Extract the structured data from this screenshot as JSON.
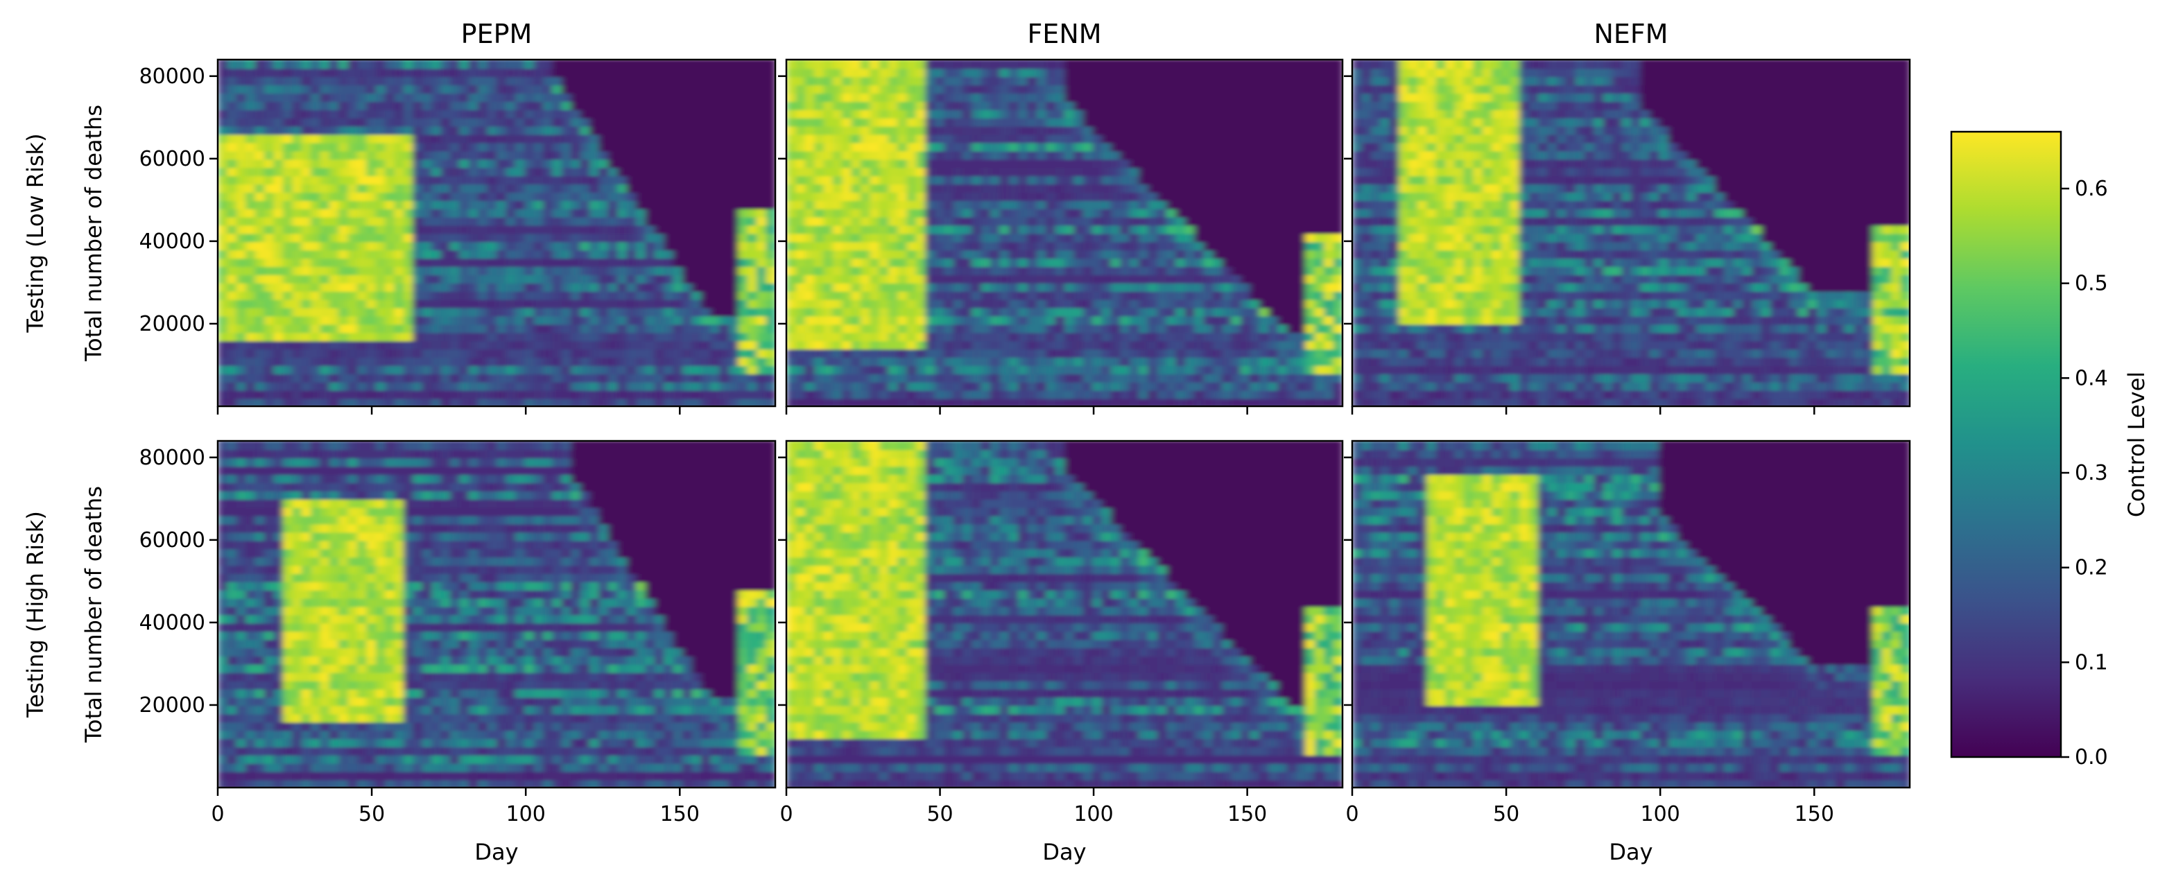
{
  "chart_data": {
    "type": "heatmap",
    "colormap": "viridis",
    "column_titles": [
      "PEPM",
      "FENM",
      "NEFM"
    ],
    "row_labels": [
      "Testing (Low Risk)",
      "Testing (High Risk)"
    ],
    "xlabel": "Day",
    "ylabel": "Total number of deaths",
    "xlim": [
      0,
      181
    ],
    "ylim": [
      0,
      84000
    ],
    "xticks": [
      0,
      50,
      100,
      150
    ],
    "yticks": [
      20000,
      40000,
      60000,
      80000
    ],
    "colorbar": {
      "label": "Control Level",
      "range": [
        0.0,
        0.66
      ],
      "ticks": [
        0.0,
        0.1,
        0.2,
        0.3,
        0.4,
        0.5,
        0.6
      ]
    },
    "panels": [
      {
        "row": "Testing (Low Risk)",
        "column": "PEPM",
        "high_block": [
          0,
          62,
          17000,
          66000
        ],
        "boundary_start": [
          110,
          80000
        ],
        "boundary_end": [
          160,
          22000
        ],
        "late_rise": [
          174,
          48000
        ]
      },
      {
        "row": "Testing (Low Risk)",
        "column": "FENM",
        "high_block": [
          0,
          45,
          14000,
          84000
        ],
        "boundary_start": [
          90,
          75000
        ],
        "boundary_end": [
          165,
          17000
        ],
        "late_rise": [
          176,
          42000
        ]
      },
      {
        "row": "Testing (Low Risk)",
        "column": "NEFM",
        "high_block": [
          15,
          55,
          20000,
          84000
        ],
        "boundary_start": [
          95,
          72000
        ],
        "boundary_end": [
          150,
          28000
        ],
        "late_rise": [
          176,
          45000
        ]
      },
      {
        "row": "Testing (High Risk)",
        "column": "PEPM",
        "high_block": [
          20,
          60,
          16000,
          70000
        ],
        "boundary_start": [
          115,
          76000
        ],
        "boundary_end": [
          160,
          22000
        ],
        "late_rise": [
          176,
          48000
        ]
      },
      {
        "row": "Testing (High Risk)",
        "column": "FENM",
        "high_block": [
          0,
          45,
          12000,
          84000
        ],
        "boundary_start": [
          90,
          78000
        ],
        "boundary_end": [
          165,
          20000
        ],
        "late_rise": [
          176,
          44000
        ]
      },
      {
        "row": "Testing (High Risk)",
        "column": "NEFM",
        "high_block": [
          25,
          60,
          20000,
          75000
        ],
        "boundary_start": [
          100,
          66000
        ],
        "boundary_end": [
          150,
          30000
        ],
        "late_rise": [
          176,
          45000
        ]
      }
    ]
  }
}
